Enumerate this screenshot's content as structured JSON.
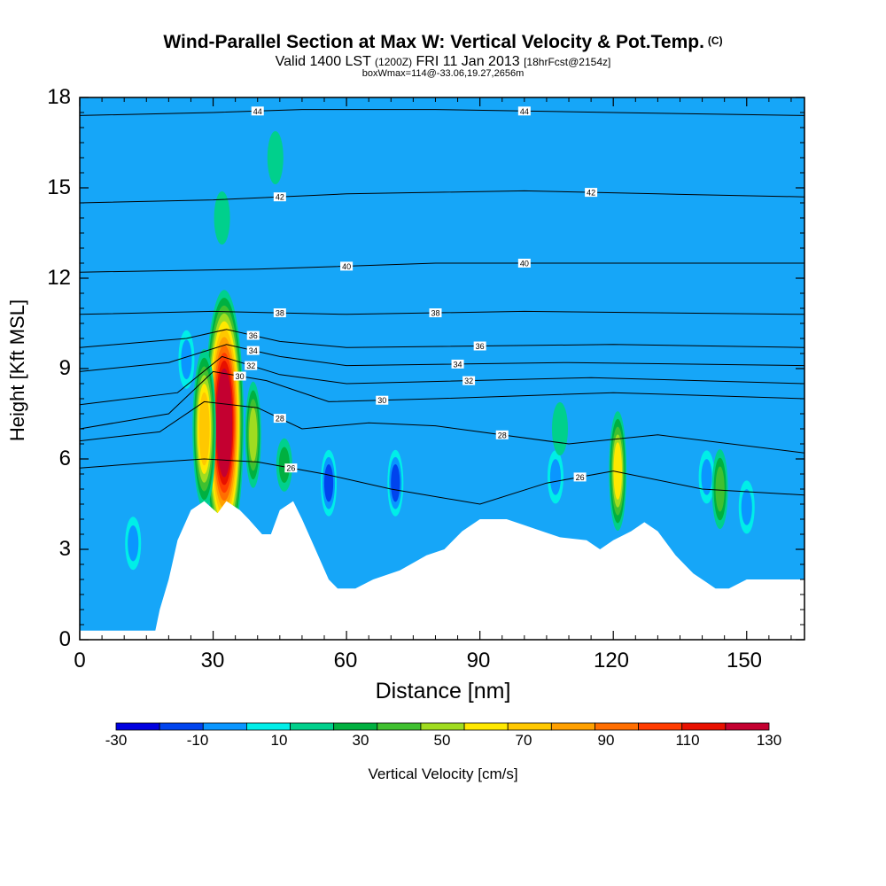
{
  "chart_data": {
    "type": "heatmap",
    "title": "Wind-Parallel Section at Max W: Vertical Velocity & Pot.Temp.",
    "title_mark": "(C)",
    "subtitle_main": "Valid 1400 LST",
    "subtitle_z": "(1200Z)",
    "subtitle_date": "FRI 11 Jan 2013",
    "subtitle_fcst": "[18hrFcst@2154z]",
    "subtitle2": "boxWmax=114@-33.06,19.27,2656m",
    "xlabel": "Distance [nm]",
    "ylabel": "Height [Kft MSL]",
    "xlim": [
      0,
      163
    ],
    "ylim": [
      0,
      18
    ],
    "xticks": [
      "0",
      "30",
      "60",
      "90",
      "120",
      "150"
    ],
    "yticks": [
      "0",
      "3",
      "6",
      "9",
      "12",
      "15",
      "18"
    ],
    "colorbar": {
      "title": "Vertical Velocity [cm/s]",
      "labels": [
        "-30",
        "-10",
        "10",
        "30",
        "50",
        "70",
        "90",
        "110",
        "130"
      ],
      "colors": [
        "#0000e0",
        "#0044ee",
        "#0a96ff",
        "#00eee8",
        "#00d08c",
        "#00b040",
        "#40c030",
        "#a0dc20",
        "#ffe800",
        "#ffc800",
        "#ffa000",
        "#ff6e00",
        "#ff3c00",
        "#e81000",
        "#c40030"
      ]
    },
    "background_value_color": "#16a6f8",
    "theta_contours": [
      {
        "label": "44",
        "points": [
          [
            0,
            17.4
          ],
          [
            30,
            17.5
          ],
          [
            50,
            17.6
          ],
          [
            80,
            17.6
          ],
          [
            120,
            17.5
          ],
          [
            163,
            17.4
          ]
        ]
      },
      {
        "label": "42",
        "points": [
          [
            0,
            14.5
          ],
          [
            30,
            14.6
          ],
          [
            60,
            14.8
          ],
          [
            100,
            14.9
          ],
          [
            130,
            14.8
          ],
          [
            163,
            14.7
          ]
        ]
      },
      {
        "label": "40",
        "points": [
          [
            0,
            12.2
          ],
          [
            40,
            12.3
          ],
          [
            80,
            12.5
          ],
          [
            120,
            12.5
          ],
          [
            163,
            12.5
          ]
        ]
      },
      {
        "label": "38",
        "points": [
          [
            0,
            10.8
          ],
          [
            30,
            10.9
          ],
          [
            60,
            10.8
          ],
          [
            100,
            10.9
          ],
          [
            163,
            10.8
          ]
        ]
      },
      {
        "label": "36",
        "points": [
          [
            0,
            9.7
          ],
          [
            24,
            10.0
          ],
          [
            33,
            10.3
          ],
          [
            45,
            9.9
          ],
          [
            60,
            9.7
          ],
          [
            120,
            9.8
          ],
          [
            163,
            9.7
          ]
        ]
      },
      {
        "label": "34",
        "points": [
          [
            0,
            8.9
          ],
          [
            20,
            9.2
          ],
          [
            33,
            9.8
          ],
          [
            45,
            9.4
          ],
          [
            60,
            9.1
          ],
          [
            110,
            9.2
          ],
          [
            163,
            9.1
          ]
        ]
      },
      {
        "label": "32",
        "points": [
          [
            0,
            7.8
          ],
          [
            22,
            8.2
          ],
          [
            32,
            9.4
          ],
          [
            45,
            8.8
          ],
          [
            60,
            8.5
          ],
          [
            115,
            8.7
          ],
          [
            163,
            8.5
          ]
        ]
      },
      {
        "label": "30",
        "points": [
          [
            0,
            7.0
          ],
          [
            20,
            7.5
          ],
          [
            30,
            8.9
          ],
          [
            42,
            8.6
          ],
          [
            56,
            7.9
          ],
          [
            80,
            8.0
          ],
          [
            120,
            8.2
          ],
          [
            163,
            8.0
          ]
        ]
      },
      {
        "label": "28",
        "points": [
          [
            0,
            6.6
          ],
          [
            18,
            6.9
          ],
          [
            28,
            7.9
          ],
          [
            40,
            7.7
          ],
          [
            50,
            7.0
          ],
          [
            65,
            7.2
          ],
          [
            80,
            7.1
          ],
          [
            110,
            6.5
          ],
          [
            130,
            6.8
          ],
          [
            163,
            6.2
          ]
        ]
      },
      {
        "label": "26",
        "points": [
          [
            0,
            5.7
          ],
          [
            18,
            5.9
          ],
          [
            28,
            6.0
          ],
          [
            40,
            5.9
          ],
          [
            55,
            5.5
          ],
          [
            70,
            5.0
          ],
          [
            90,
            4.5
          ],
          [
            105,
            5.2
          ],
          [
            120,
            5.6
          ],
          [
            140,
            5.0
          ],
          [
            163,
            4.8
          ]
        ]
      }
    ],
    "w_features": [
      {
        "x": 32.5,
        "y": 7.2,
        "value": 114
      },
      {
        "x": 28,
        "y": 7.0,
        "value": 60
      },
      {
        "x": 39,
        "y": 6.8,
        "value": 40
      },
      {
        "x": 46,
        "y": 5.8,
        "value": 15
      },
      {
        "x": 56,
        "y": 5.2,
        "value": -25
      },
      {
        "x": 71,
        "y": 5.2,
        "value": -25
      },
      {
        "x": 121,
        "y": 5.6,
        "value": 45
      },
      {
        "x": 107,
        "y": 5.4,
        "value": -18
      },
      {
        "x": 141,
        "y": 5.4,
        "value": -20
      },
      {
        "x": 144,
        "y": 5.0,
        "value": 30
      },
      {
        "x": 150,
        "y": 4.4,
        "value": -15
      },
      {
        "x": 12,
        "y": 3.2,
        "value": -15
      },
      {
        "x": 24,
        "y": 9.3,
        "value": -22
      },
      {
        "x": 32,
        "y": 14.0,
        "value": 8
      },
      {
        "x": 44,
        "y": 16.0,
        "value": 8
      },
      {
        "x": 108,
        "y": 7.0,
        "value": 8
      }
    ],
    "terrain": [
      [
        0,
        0.3
      ],
      [
        17,
        0.3
      ],
      [
        18,
        1.0
      ],
      [
        20,
        2.0
      ],
      [
        22,
        3.3
      ],
      [
        25,
        4.3
      ],
      [
        28,
        4.6
      ],
      [
        31,
        4.2
      ],
      [
        33,
        4.6
      ],
      [
        36,
        4.3
      ],
      [
        38,
        4.0
      ],
      [
        41,
        3.5
      ],
      [
        43,
        3.5
      ],
      [
        45,
        4.3
      ],
      [
        48,
        4.6
      ],
      [
        50,
        4.0
      ],
      [
        53,
        3.0
      ],
      [
        56,
        2.0
      ],
      [
        58,
        1.7
      ],
      [
        62,
        1.7
      ],
      [
        66,
        2.0
      ],
      [
        72,
        2.3
      ],
      [
        78,
        2.8
      ],
      [
        82,
        3.0
      ],
      [
        86,
        3.6
      ],
      [
        90,
        4.0
      ],
      [
        96,
        4.0
      ],
      [
        100,
        3.8
      ],
      [
        104,
        3.6
      ],
      [
        108,
        3.4
      ],
      [
        114,
        3.3
      ],
      [
        117,
        3.0
      ],
      [
        120,
        3.3
      ],
      [
        124,
        3.6
      ],
      [
        127,
        3.9
      ],
      [
        130,
        3.6
      ],
      [
        134,
        2.8
      ],
      [
        138,
        2.2
      ],
      [
        141,
        1.9
      ],
      [
        143,
        1.7
      ],
      [
        146,
        1.7
      ],
      [
        150,
        2.0
      ],
      [
        163,
        2.0
      ]
    ]
  }
}
